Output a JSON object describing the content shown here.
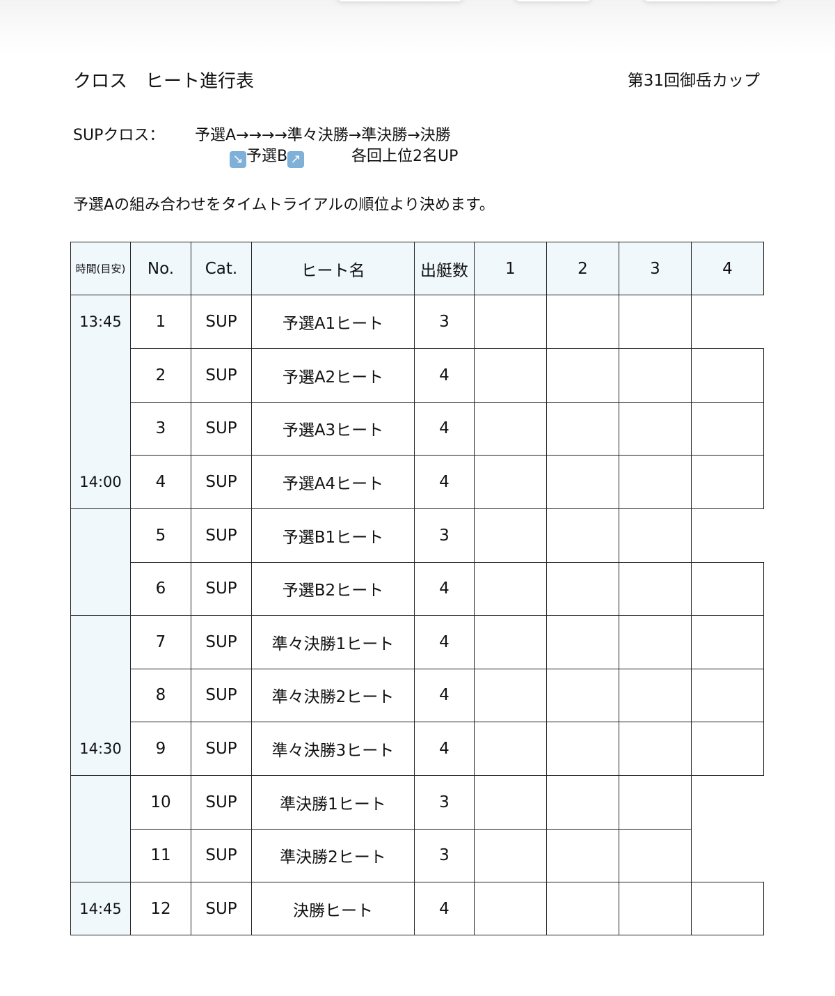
{
  "title": "クロス　ヒート進行表",
  "event": "第31回御岳カップ",
  "flow": {
    "label": "SUPクロス：",
    "main": "予選A→→→→準々決勝→準決勝→決勝",
    "sub_icon_left": "arrow-down-right-icon",
    "sub": "予選B",
    "sub_icon_right": "arrow-up-right-icon",
    "note": "各回上位2名UP"
  },
  "description": "予選Aの組み合わせをタイムトライアルの順位より決めます。",
  "table": {
    "headers": [
      "時間(目安)",
      "No.",
      "Cat.",
      "ヒート名",
      "出艇数",
      "1",
      "2",
      "3",
      "4"
    ],
    "time_groups": [
      {
        "rows": 4,
        "top": "13:45",
        "bottom": "14:00"
      },
      {
        "rows": 2
      },
      {
        "rows": 3,
        "bottom": "14:30"
      },
      {
        "rows": 2
      },
      {
        "rows": 1,
        "middle": "14:45"
      }
    ],
    "rows": [
      {
        "no": "1",
        "cat": "SUP",
        "name": "予選A1ヒート",
        "count": "3"
      },
      {
        "no": "2",
        "cat": "SUP",
        "name": "予選A2ヒート",
        "count": "4"
      },
      {
        "no": "3",
        "cat": "SUP",
        "name": "予選A3ヒート",
        "count": "4"
      },
      {
        "no": "4",
        "cat": "SUP",
        "name": "予選A4ヒート",
        "count": "4"
      },
      {
        "no": "5",
        "cat": "SUP",
        "name": "予選B1ヒート",
        "count": "3"
      },
      {
        "no": "6",
        "cat": "SUP",
        "name": "予選B2ヒート",
        "count": "4"
      },
      {
        "no": "7",
        "cat": "SUP",
        "name": "準々決勝1ヒート",
        "count": "4"
      },
      {
        "no": "8",
        "cat": "SUP",
        "name": "準々決勝2ヒート",
        "count": "4"
      },
      {
        "no": "9",
        "cat": "SUP",
        "name": "準々決勝3ヒート",
        "count": "4"
      },
      {
        "no": "10",
        "cat": "SUP",
        "name": "準決勝1ヒート",
        "count": "3"
      },
      {
        "no": "11",
        "cat": "SUP",
        "name": "準決勝2ヒート",
        "count": "3"
      },
      {
        "no": "12",
        "cat": "SUP",
        "name": "決勝ヒート",
        "count": "4"
      }
    ]
  },
  "colors": {
    "header_bg": "#f0f8fc",
    "emoji_bg": "#7fb0d8"
  }
}
